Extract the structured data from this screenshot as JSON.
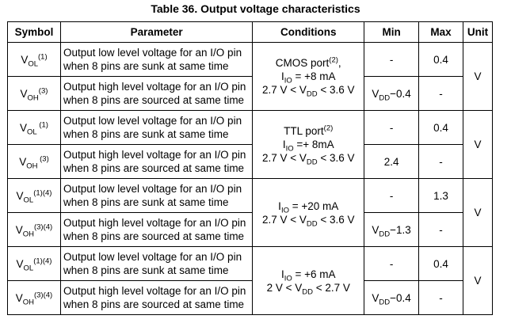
{
  "title": "Table 36. Output voltage characteristics",
  "table": {
    "header": [
      "Symbol",
      "Parameter",
      "Conditions",
      "Min",
      "Max",
      "Unit"
    ],
    "groups": [
      {
        "conditions": [
          [
            {
              "t": "CMOS port"
            },
            {
              "sup": "(2)"
            },
            {
              "t": ","
            }
          ],
          [
            {
              "t": "I"
            },
            {
              "sub": "IO"
            },
            {
              "t": " = +8 mA"
            }
          ],
          [
            {
              "t": "2.7 V < V"
            },
            {
              "sub": "DD"
            },
            {
              "t": " < 3.6 V"
            }
          ]
        ],
        "unit": "V",
        "rows": [
          {
            "symbol": [
              {
                "t": "V"
              },
              {
                "sub": "OL"
              },
              {
                "sup": "(1)"
              }
            ],
            "parameter": [
              "Output low level voltage for an I/O pin",
              "when 8 pins are sunk at same time"
            ],
            "min": [
              {
                "t": "-"
              }
            ],
            "max": [
              {
                "t": "0.4"
              }
            ]
          },
          {
            "symbol": [
              {
                "t": "V"
              },
              {
                "sub": "OH"
              },
              {
                "sup": "(3)"
              }
            ],
            "parameter": [
              "Output high level voltage for an I/O pin",
              "when 8 pins are sourced at same time"
            ],
            "min": [
              {
                "t": "V"
              },
              {
                "sub": "DD"
              },
              {
                "t": "−0.4"
              }
            ],
            "max": [
              {
                "t": "-"
              }
            ]
          }
        ]
      },
      {
        "conditions": [
          [
            {
              "t": "TTL port"
            },
            {
              "sup": "(2)"
            }
          ],
          [
            {
              "t": "I"
            },
            {
              "sub": "IO"
            },
            {
              "t": " =+ 8mA"
            }
          ],
          [
            {
              "t": "2.7 V < V"
            },
            {
              "sub": "DD"
            },
            {
              "t": " < 3.6 V"
            }
          ]
        ],
        "unit": "V",
        "rows": [
          {
            "symbol": [
              {
                "t": "V"
              },
              {
                "sub": "OL"
              },
              {
                "sup": " (1)"
              }
            ],
            "parameter": [
              "Output low level voltage for an I/O pin",
              "when 8 pins are sunk at same time"
            ],
            "min": [
              {
                "t": "-"
              }
            ],
            "max": [
              {
                "t": "0.4"
              }
            ]
          },
          {
            "symbol": [
              {
                "t": "V"
              },
              {
                "sub": "OH"
              },
              {
                "sup": " (3)"
              }
            ],
            "parameter": [
              "Output high level voltage for an I/O pin",
              "when 8 pins are sourced at same time"
            ],
            "min": [
              {
                "t": "2.4"
              }
            ],
            "max": [
              {
                "t": "-"
              }
            ]
          }
        ]
      },
      {
        "conditions": [
          [
            {
              "t": "I"
            },
            {
              "sub": "IO"
            },
            {
              "t": " = +20 mA"
            }
          ],
          [
            {
              "t": "2.7 V < V"
            },
            {
              "sub": "DD"
            },
            {
              "t": " < 3.6 V"
            }
          ]
        ],
        "unit": "V",
        "rows": [
          {
            "symbol": [
              {
                "t": "V"
              },
              {
                "sub": "OL"
              },
              {
                "sup": "(1)(4)"
              }
            ],
            "parameter": [
              "Output low level voltage for an I/O pin",
              "when 8 pins are sunk at same time"
            ],
            "min": [
              {
                "t": "-"
              }
            ],
            "max": [
              {
                "t": "1.3"
              }
            ]
          },
          {
            "symbol": [
              {
                "t": "V"
              },
              {
                "sub": "OH"
              },
              {
                "sup": "(3)(4)"
              }
            ],
            "parameter": [
              "Output high level voltage for an I/O pin",
              "when 8 pins are sourced at same time"
            ],
            "min": [
              {
                "t": "V"
              },
              {
                "sub": "DD"
              },
              {
                "t": "−1.3"
              }
            ],
            "max": [
              {
                "t": "-"
              }
            ]
          }
        ]
      },
      {
        "conditions": [
          [
            {
              "t": "I"
            },
            {
              "sub": "IO"
            },
            {
              "t": " = +6 mA"
            }
          ],
          [
            {
              "t": "2 V < V"
            },
            {
              "sub": "DD"
            },
            {
              "t": " < 2.7 V"
            }
          ]
        ],
        "unit": "V",
        "rows": [
          {
            "symbol": [
              {
                "t": "V"
              },
              {
                "sub": "OL"
              },
              {
                "sup": "(1)(4)"
              }
            ],
            "parameter": [
              "Output low level voltage for an I/O pin",
              "when 8 pins are sunk at same time"
            ],
            "min": [
              {
                "t": "-"
              }
            ],
            "max": [
              {
                "t": "0.4"
              }
            ]
          },
          {
            "symbol": [
              {
                "t": "V"
              },
              {
                "sub": "OH"
              },
              {
                "sup": "(3)(4)"
              }
            ],
            "parameter": [
              "Output high level voltage for an I/O pin",
              "when 8 pins are sourced at same time"
            ],
            "min": [
              {
                "t": "V"
              },
              {
                "sub": "DD"
              },
              {
                "t": "−0.4"
              }
            ],
            "max": [
              {
                "t": "-"
              }
            ]
          }
        ]
      }
    ]
  }
}
